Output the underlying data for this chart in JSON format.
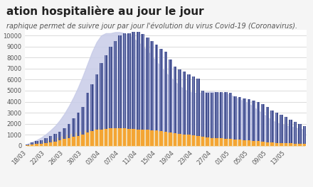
{
  "title": "ation hospitalière au jour le jour",
  "subtitle": "raphique permet de suivre jour par jour l'évolution du virus Covid-19 (Coronavirus).",
  "background_color": "#f5f5f5",
  "plot_bg_color": "#ffffff",
  "x_labels": [
    "18/03",
    "22/03",
    "26/03",
    "30/03",
    "03/04",
    "07/04",
    "11/04",
    "15/04",
    "19/04",
    "23/04",
    "27/04",
    "01/05",
    "05/05",
    "09/05",
    "13/05",
    ""
  ],
  "hosp_bars": [
    150,
    300,
    450,
    500,
    700,
    900,
    1100,
    1300,
    1600,
    2000,
    2500,
    3000,
    3500,
    4800,
    5600,
    6500,
    7500,
    8200,
    9000,
    9500,
    10000,
    10200,
    10200,
    10300,
    10300,
    10100,
    9800,
    9500,
    9200,
    8800,
    8500,
    7800,
    7200,
    6900,
    6700,
    6500,
    6300,
    6100,
    5000,
    4800,
    4800,
    4900,
    4900,
    4900,
    4800,
    4500,
    4400,
    4300,
    4200,
    4100,
    4000,
    3800,
    3500,
    3200,
    3000,
    2800,
    2600,
    2400,
    2200,
    2000,
    1800
  ],
  "rea_bars": [
    80,
    120,
    160,
    200,
    250,
    320,
    400,
    500,
    620,
    700,
    800,
    900,
    1000,
    1200,
    1350,
    1450,
    1500,
    1550,
    1600,
    1620,
    1600,
    1580,
    1560,
    1520,
    1500,
    1480,
    1450,
    1420,
    1380,
    1320,
    1280,
    1200,
    1150,
    1100,
    1050,
    1000,
    950,
    900,
    800,
    750,
    720,
    700,
    680,
    660,
    640,
    600,
    560,
    520,
    480,
    450,
    420,
    380,
    340,
    300,
    280,
    260,
    240,
    220,
    200,
    180,
    160
  ],
  "hosp_smooth": [
    200,
    350,
    520,
    750,
    1050,
    1400,
    1800,
    2300,
    2900,
    3600,
    4400,
    5300,
    6300,
    7400,
    8500,
    9400,
    10000,
    10200,
    10200,
    10300,
    10300,
    10200,
    10000,
    9700,
    9400,
    9000,
    8600,
    8100,
    7600,
    7100,
    6600,
    6200,
    5800,
    5400,
    5100,
    4900,
    4800,
    4800,
    4850,
    4900,
    4900,
    4850,
    4800,
    4750,
    4600,
    4400,
    4200,
    4000,
    3800,
    3500,
    3200,
    2900,
    2600,
    2300,
    2100,
    1950,
    1850,
    1750,
    1650,
    1550,
    1450
  ],
  "rea_smooth": [
    100,
    150,
    220,
    300,
    400,
    520,
    650,
    780,
    900,
    1020,
    1130,
    1230,
    1330,
    1420,
    1480,
    1530,
    1570,
    1590,
    1600,
    1605,
    1600,
    1585,
    1560,
    1530,
    1495,
    1450,
    1400,
    1350,
    1290,
    1230,
    1170,
    1120,
    1080,
    1040,
    1005,
    975,
    945,
    910,
    870,
    830,
    790,
    750,
    715,
    680,
    640,
    595,
    550,
    505,
    460,
    420,
    385,
    350,
    315,
    285,
    260,
    245,
    235,
    225,
    215,
    205,
    195
  ],
  "bar_color": "#3d4b8a",
  "rea_color": "#f4a533",
  "smooth_color": "#c8cce8",
  "rea_smooth_color": "#f5dba8",
  "ylim": [
    0,
    10500
  ],
  "yticks": [
    0,
    500,
    1000,
    1500,
    2000,
    2500,
    3000,
    3500,
    4000,
    4500,
    5000,
    5500,
    6000,
    6500,
    7000,
    7500,
    8000,
    8500,
    9000,
    9500,
    10000
  ],
  "title_fontsize": 11,
  "subtitle_fontsize": 7,
  "tick_fontsize": 6,
  "legend_fontsize": 6.5
}
